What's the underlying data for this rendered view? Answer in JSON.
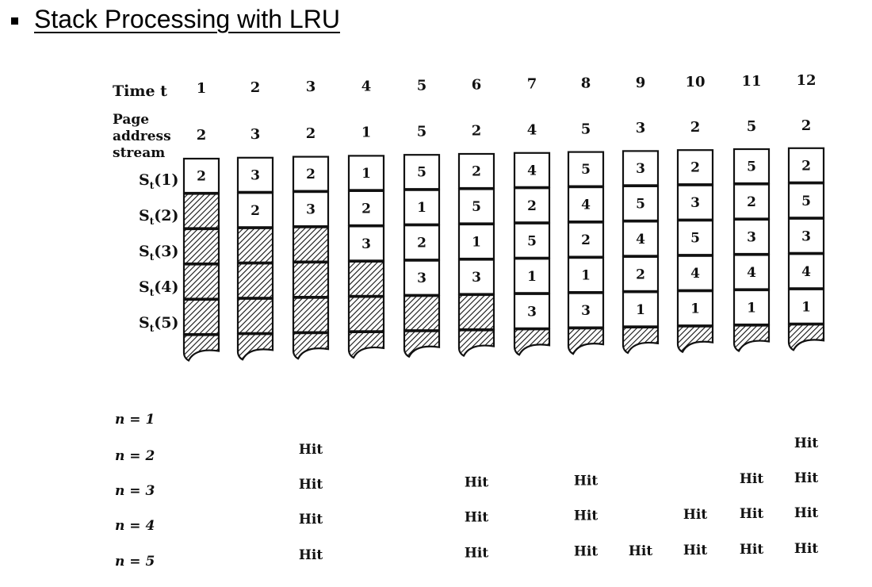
{
  "title": "Stack Processing with LRU",
  "labels": {
    "time": "Time t",
    "page_line1": "Page",
    "page_line2": "address",
    "page_line3": "stream"
  },
  "stack_labels": [
    "S_t(1)",
    "S_t(2)",
    "S_t(3)",
    "S_t(4)",
    "S_t(5)"
  ],
  "times": [
    "1",
    "2",
    "3",
    "4",
    "5",
    "6",
    "7",
    "8",
    "9",
    "10",
    "11",
    "12"
  ],
  "page_stream": [
    "2",
    "3",
    "2",
    "1",
    "5",
    "2",
    "4",
    "5",
    "3",
    "2",
    "5",
    "2"
  ],
  "stacks": [
    [
      "2"
    ],
    [
      "3",
      "2"
    ],
    [
      "2",
      "3"
    ],
    [
      "1",
      "2",
      "3"
    ],
    [
      "5",
      "1",
      "2",
      "3"
    ],
    [
      "2",
      "5",
      "1",
      "3"
    ],
    [
      "4",
      "2",
      "5",
      "1",
      "3"
    ],
    [
      "5",
      "4",
      "2",
      "1",
      "3"
    ],
    [
      "3",
      "5",
      "4",
      "2",
      "1"
    ],
    [
      "2",
      "3",
      "5",
      "4",
      "1"
    ],
    [
      "5",
      "2",
      "3",
      "4",
      "1"
    ],
    [
      "2",
      "5",
      "3",
      "4",
      "1"
    ]
  ],
  "hit_label": "Hit",
  "hit_rows": [
    {
      "label": "n = 1",
      "hits": []
    },
    {
      "label": "n = 2",
      "hits": [
        3,
        12
      ]
    },
    {
      "label": "n = 3",
      "hits": [
        3,
        6,
        8,
        11,
        12
      ]
    },
    {
      "label": "n = 4",
      "hits": [
        3,
        6,
        8,
        10,
        11,
        12
      ]
    },
    {
      "label": "n = 5",
      "hits": [
        3,
        6,
        8,
        9,
        10,
        11,
        12
      ]
    }
  ]
}
